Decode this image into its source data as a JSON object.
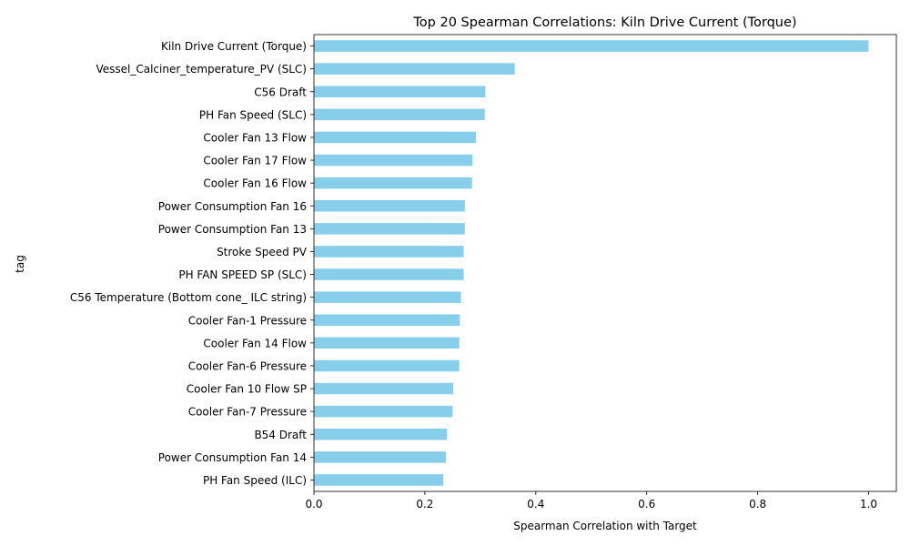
{
  "chart_data": {
    "type": "bar",
    "orientation": "horizontal",
    "title": "Top 20 Spearman Correlations: Kiln Drive Current (Torque)",
    "xlabel": "Spearman Correlation with Target",
    "ylabel": "tag",
    "xlim": [
      0,
      1.05
    ],
    "xticks": [
      "0.0",
      "0.2",
      "0.4",
      "0.6",
      "0.8",
      "1.0"
    ],
    "xtick_values": [
      0,
      0.2,
      0.4,
      0.6,
      0.8,
      1.0
    ],
    "bar_color": "#87CEEB",
    "grid": false,
    "categories": [
      "Kiln Drive Current (Torque)",
      "Vessel_Calciner_temperature_PV (SLC)",
      "C56 Draft",
      "PH Fan Speed (SLC)",
      "Cooler Fan 13 Flow",
      "Cooler Fan 17 Flow",
      "Cooler Fan 16 Flow",
      "Power Consumption Fan 16",
      "Power Consumption Fan 13",
      "Stroke Speed PV",
      "PH FAN SPEED SP (SLC)",
      "C56 Temperature (Bottom cone_ ILC string)",
      "Cooler Fan-1 Pressure",
      "Cooler Fan 14 Flow",
      "Cooler Fan-6 Pressure",
      "Cooler Fan 10 Flow SP",
      "Cooler Fan-7 Pressure",
      "B54 Draft",
      "Power Consumption Fan 14",
      "PH Fan Speed (ILC)"
    ],
    "values": [
      1.0,
      0.362,
      0.309,
      0.308,
      0.292,
      0.286,
      0.285,
      0.272,
      0.272,
      0.27,
      0.27,
      0.265,
      0.263,
      0.262,
      0.262,
      0.251,
      0.25,
      0.24,
      0.238,
      0.233
    ]
  }
}
